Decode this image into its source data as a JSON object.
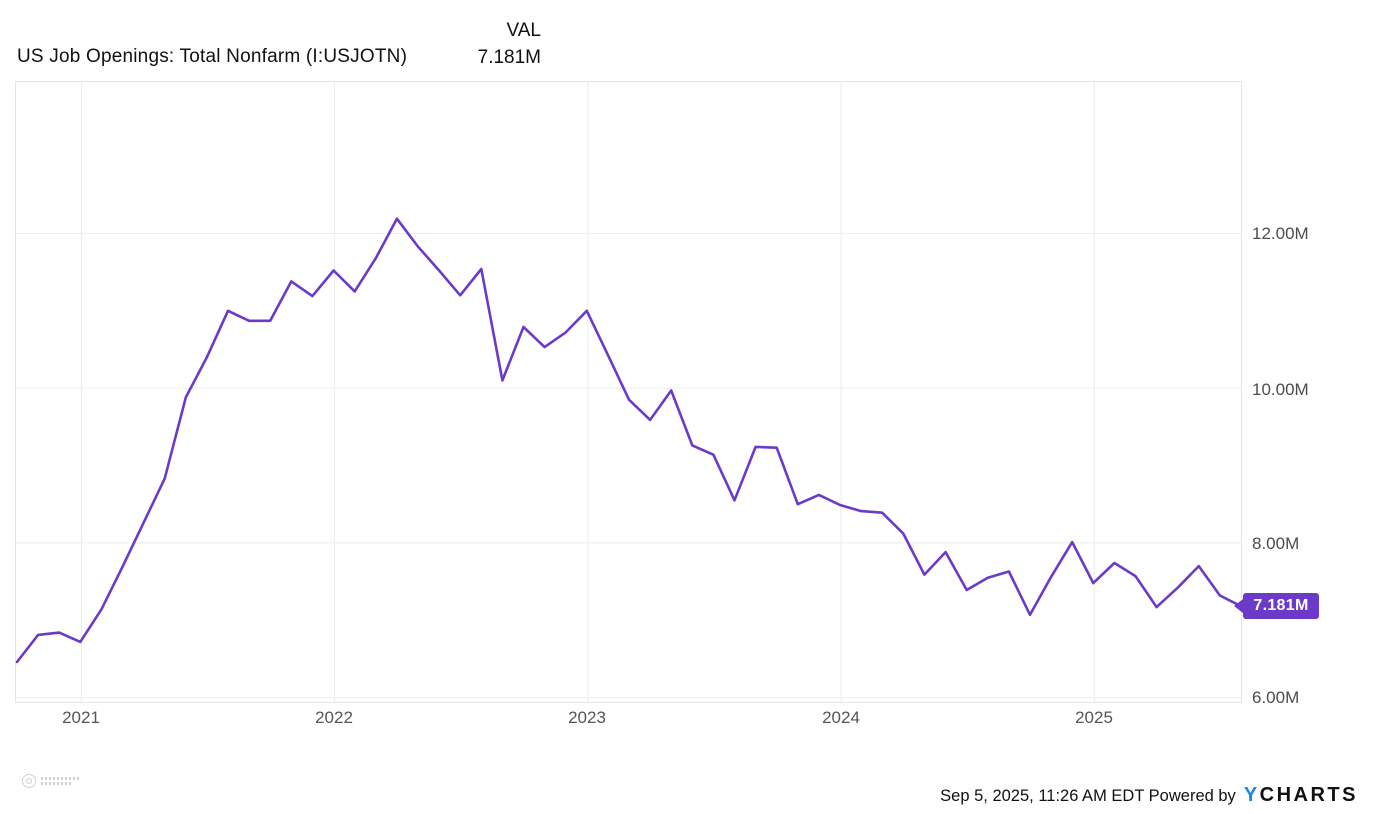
{
  "header": {
    "title": "US Job Openings: Total Nonfarm (I:USJOTN)",
    "val_column_label": "VAL",
    "val_value": "7.181M"
  },
  "chart_data": {
    "type": "line",
    "title": "US Job Openings: Total Nonfarm (I:USJOTN)",
    "x": [
      "2020-09",
      "2020-10",
      "2020-11",
      "2020-12",
      "2021-01",
      "2021-02",
      "2021-03",
      "2021-04",
      "2021-05",
      "2021-06",
      "2021-07",
      "2021-08",
      "2021-09",
      "2021-10",
      "2021-11",
      "2021-12",
      "2022-01",
      "2022-02",
      "2022-03",
      "2022-04",
      "2022-05",
      "2022-06",
      "2022-07",
      "2022-08",
      "2022-09",
      "2022-10",
      "2022-11",
      "2022-12",
      "2023-01",
      "2023-02",
      "2023-03",
      "2023-04",
      "2023-05",
      "2023-06",
      "2023-07",
      "2023-08",
      "2023-09",
      "2023-10",
      "2023-11",
      "2023-12",
      "2024-01",
      "2024-02",
      "2024-03",
      "2024-04",
      "2024-05",
      "2024-06",
      "2024-07",
      "2024-08",
      "2024-09",
      "2024-10",
      "2024-11",
      "2024-12",
      "2025-01",
      "2025-02",
      "2025-03",
      "2025-04",
      "2025-05",
      "2025-06",
      "2025-07"
    ],
    "series": [
      {
        "name": "US Job Openings: Total Nonfarm",
        "unit": "M",
        "color": "#6B3AC9",
        "values": [
          6.46,
          6.81,
          6.84,
          6.72,
          7.14,
          7.69,
          8.26,
          8.83,
          9.88,
          10.4,
          11.0,
          10.87,
          10.87,
          11.38,
          11.19,
          11.52,
          11.25,
          11.68,
          12.19,
          11.83,
          11.52,
          11.2,
          11.54,
          10.1,
          10.79,
          10.53,
          10.72,
          11.0,
          10.43,
          9.85,
          9.59,
          9.97,
          9.26,
          9.14,
          8.55,
          9.24,
          9.23,
          8.5,
          8.62,
          8.49,
          8.41,
          8.39,
          8.12,
          7.59,
          7.88,
          7.39,
          7.55,
          7.63,
          7.07,
          7.56,
          8.01,
          7.48,
          7.74,
          7.57,
          7.17,
          7.42,
          7.7,
          7.32,
          7.181
        ]
      }
    ],
    "last_value": 7.181,
    "last_value_label": "7.181M",
    "x_tick_labels": [
      "2021",
      "2022",
      "2023",
      "2024",
      "2025"
    ],
    "y_ticks": [
      {
        "value": 12,
        "label": "12.00M"
      },
      {
        "value": 10,
        "label": "10.00M"
      },
      {
        "value": 8,
        "label": "8.00M"
      },
      {
        "value": 6,
        "label": "6.00M"
      }
    ],
    "ylim": [
      5.93,
      13.97
    ],
    "grid": true,
    "legend_position": "none"
  },
  "badge": {
    "text": "7.181M",
    "color": "#6B3AC9"
  },
  "footer": {
    "timestamp_and_powered_by": "Sep 5, 2025, 11:26 AM EDT Powered by",
    "brand_first_letter": "Y",
    "brand_rest": "CHARTS"
  },
  "icons": {
    "badge_pointer": "left-arrow-pointer",
    "watermark": "circular-emblem-watermark"
  },
  "colors": {
    "line": "#6B3AC9",
    "badge_bg": "#6B3AC9",
    "brand_blue": "#1789E6",
    "grid": "#ECECEC",
    "plot_border": "#E4E4E4"
  }
}
